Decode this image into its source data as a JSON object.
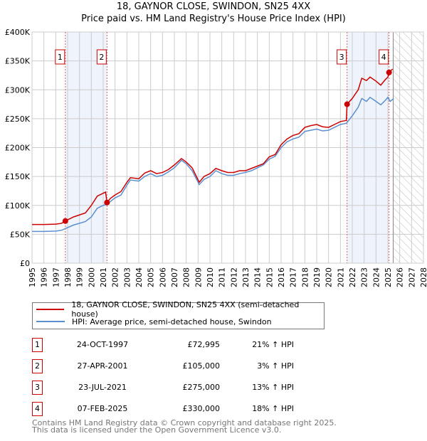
{
  "chart_data": {
    "type": "line",
    "title": "18, GAYNOR CLOSE, SWINDON, SN25 4XX",
    "subtitle": "Price paid vs. HM Land Registry's House Price Index (HPI)",
    "xlim": [
      1995,
      2028
    ],
    "ylim": [
      0,
      400000
    ],
    "x_ticks": [
      "1995",
      "1996",
      "1997",
      "1998",
      "1999",
      "2000",
      "2001",
      "2002",
      "2003",
      "2004",
      "2005",
      "2006",
      "2007",
      "2008",
      "2009",
      "2010",
      "2011",
      "2012",
      "2013",
      "2014",
      "2015",
      "2016",
      "2017",
      "2018",
      "2019",
      "2020",
      "2021",
      "2022",
      "2023",
      "2024",
      "2025",
      "2026",
      "2027",
      "2028"
    ],
    "y_ticks": [
      {
        "v": 0,
        "label": "£0"
      },
      {
        "v": 50000,
        "label": "£50K"
      },
      {
        "v": 100000,
        "label": "£100K"
      },
      {
        "v": 150000,
        "label": "£150K"
      },
      {
        "v": 200000,
        "label": "£200K"
      },
      {
        "v": 250000,
        "label": "£250K"
      },
      {
        "v": 300000,
        "label": "£300K"
      },
      {
        "v": 350000,
        "label": "£350K"
      },
      {
        "v": 400000,
        "label": "£400K"
      }
    ],
    "grid": true,
    "shaded_ranges": [
      [
        1997.81,
        2001.32
      ],
      [
        2021.56,
        2025.1
      ]
    ],
    "forecast_hatch_from": 2025.45,
    "series": [
      {
        "name": "18, GAYNOR CLOSE, SWINDON, SN25 4XX (semi-detached house)",
        "color": "#cc0000",
        "x": [
          1995,
          1996,
          1997,
          1997.5,
          1997.81,
          1998.5,
          1999.5,
          2000,
          2000.5,
          2001,
          2001.2,
          2001.32,
          2001.6,
          2002,
          2002.5,
          2003,
          2003.3,
          2004,
          2004.5,
          2005,
          2005.5,
          2006,
          2006.5,
          2007,
          2007.6,
          2008,
          2008.5,
          2009.1,
          2009.5,
          2010,
          2010.5,
          2011,
          2011.5,
          2012,
          2012.5,
          2013,
          2013.5,
          2014,
          2014.5,
          2015,
          2015.5,
          2016,
          2016.5,
          2017,
          2017.5,
          2018,
          2018.5,
          2019,
          2019.5,
          2020,
          2020.5,
          2021,
          2021.5,
          2021.56,
          2022,
          2022.5,
          2022.8,
          2023.2,
          2023.5,
          2024,
          2024.4,
          2024.8,
          2025,
          2025.1,
          2025.4
        ],
        "y": [
          67000,
          67000,
          67500,
          69000,
          72995,
          80000,
          87000,
          100000,
          116000,
          121000,
          123000,
          105000,
          112000,
          118000,
          124000,
          140000,
          148000,
          146000,
          156000,
          160000,
          155000,
          157000,
          162000,
          170000,
          181000,
          175000,
          165000,
          140000,
          150000,
          155000,
          164000,
          160000,
          157000,
          157000,
          160000,
          160000,
          164000,
          168000,
          172000,
          184000,
          188000,
          205000,
          215000,
          221000,
          224000,
          235000,
          238000,
          240000,
          236000,
          235000,
          240000,
          245000,
          247000,
          275000,
          285000,
          300000,
          320000,
          316000,
          322000,
          315000,
          308000,
          318000,
          322000,
          330000,
          336000
        ]
      },
      {
        "name": "HPI: Average price, semi-detached house, Swindon",
        "color": "#5b8fd0",
        "x": [
          1995,
          1996,
          1997,
          1997.5,
          1997.81,
          1998.5,
          1999.5,
          2000,
          2000.5,
          2001,
          2001.32,
          2002,
          2002.5,
          2003,
          2003.3,
          2004,
          2004.5,
          2005,
          2005.5,
          2006,
          2006.5,
          2007,
          2007.6,
          2008,
          2008.5,
          2009.1,
          2009.5,
          2010,
          2010.5,
          2011,
          2011.5,
          2012,
          2012.5,
          2013,
          2013.5,
          2014,
          2014.5,
          2015,
          2015.5,
          2016,
          2016.5,
          2017,
          2017.5,
          2018,
          2018.5,
          2019,
          2019.5,
          2020,
          2020.5,
          2021,
          2021.5,
          2022,
          2022.5,
          2022.8,
          2023.2,
          2023.5,
          2024,
          2024.4,
          2024.8,
          2025,
          2025.2,
          2025.5
        ],
        "y": [
          55000,
          55000,
          55500,
          57000,
          60000,
          66000,
          72000,
          80000,
          95000,
          100000,
          102000,
          113000,
          118000,
          135000,
          144000,
          142000,
          150000,
          155000,
          150000,
          152000,
          158000,
          165000,
          178000,
          172000,
          160000,
          136000,
          145000,
          150000,
          160000,
          155000,
          152000,
          152000,
          155000,
          157000,
          160000,
          165000,
          170000,
          180000,
          185000,
          200000,
          210000,
          215000,
          218000,
          228000,
          230000,
          232000,
          229000,
          230000,
          235000,
          240000,
          242000,
          255000,
          270000,
          285000,
          280000,
          287000,
          280000,
          274000,
          282000,
          287000,
          280000,
          285000
        ]
      }
    ],
    "sales": [
      {
        "n": "1",
        "date": "24-OCT-1997",
        "x": 1997.81,
        "price": "£72,995",
        "value": 72995,
        "hpi": "21% ↑ HPI"
      },
      {
        "n": "2",
        "date": "27-APR-2001",
        "x": 2001.32,
        "price": "£105,000",
        "value": 105000,
        "hpi": "3% ↑ HPI"
      },
      {
        "n": "3",
        "date": "23-JUL-2021",
        "x": 2021.56,
        "price": "£275,000",
        "value": 275000,
        "hpi": "13% ↑ HPI"
      },
      {
        "n": "4",
        "date": "07-FEB-2025",
        "x": 2025.1,
        "price": "£330,000",
        "value": 330000,
        "hpi": "18% ↑ HPI"
      }
    ]
  },
  "footer": {
    "line1": "Contains HM Land Registry data © Crown copyright and database right 2025.",
    "line2": "This data is licensed under the Open Government Licence v3.0."
  }
}
